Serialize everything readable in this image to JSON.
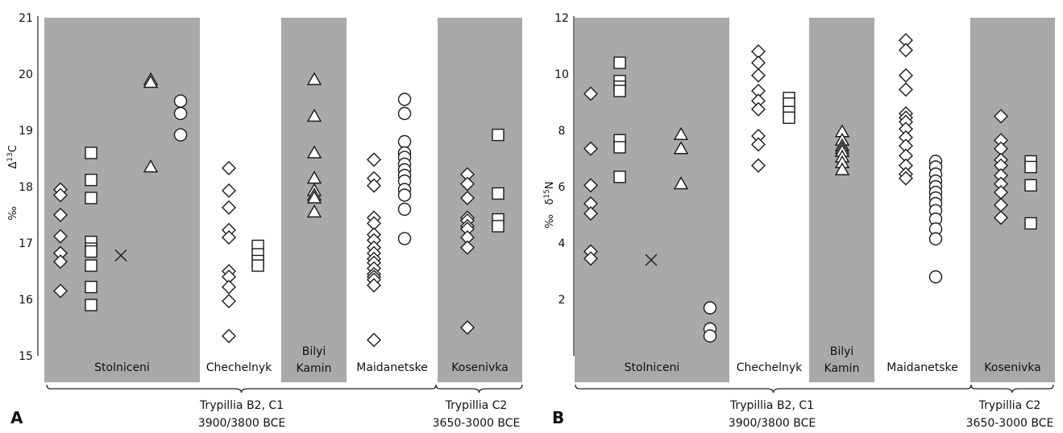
{
  "chart_data": [
    {
      "panel": "A",
      "type": "scatter",
      "ylabel": "Δ13C ‰",
      "ylim": [
        15,
        21
      ],
      "yticks": [
        15,
        16,
        17,
        18,
        19,
        20,
        21
      ],
      "groups": [
        {
          "name": "Stolniceni",
          "shaded": true
        },
        {
          "name": "Chechelnyk",
          "shaded": false
        },
        {
          "name": "Bilyi Kamin",
          "shaded": true
        },
        {
          "name": "Maidanetske",
          "shaded": false
        },
        {
          "name": "Kosenivka",
          "shaded": true
        }
      ],
      "periods": [
        {
          "label": "Trypillia B2, C1",
          "dates": "3900/3800 BCE"
        },
        {
          "label": "Trypillia C2",
          "dates": "3650-3000 BCE"
        }
      ],
      "series": [
        {
          "group": "Stolniceni",
          "marker": "diamond",
          "values": [
            17.95,
            17.85,
            17.5,
            17.12,
            16.82,
            16.67,
            16.15
          ]
        },
        {
          "group": "Stolniceni",
          "marker": "square",
          "values": [
            18.6,
            18.12,
            17.8,
            17.02,
            16.9,
            16.85,
            16.6,
            16.22,
            15.9
          ]
        },
        {
          "group": "Stolniceni",
          "marker": "cross",
          "values": [
            16.78
          ]
        },
        {
          "group": "Stolniceni",
          "marker": "triangle",
          "values": [
            19.9,
            19.85,
            18.35
          ]
        },
        {
          "group": "Stolniceni",
          "marker": "circle",
          "values": [
            19.52,
            19.3,
            18.92
          ]
        },
        {
          "group": "Chechelnyk",
          "marker": "diamond",
          "values": [
            18.33,
            17.93,
            17.63,
            17.23,
            17.1,
            16.5,
            16.4,
            16.22,
            15.97,
            15.35
          ]
        },
        {
          "group": "Chechelnyk",
          "marker": "square",
          "values": [
            16.95,
            16.8,
            16.68,
            16.6
          ]
        },
        {
          "group": "Bilyi Kamin",
          "marker": "triangle",
          "values": [
            19.9,
            19.25,
            18.6,
            18.15,
            17.93,
            17.85,
            17.8,
            17.55
          ]
        },
        {
          "group": "Maidanetske",
          "marker": "diamond",
          "values": [
            18.48,
            18.15,
            18.02,
            17.45,
            17.35,
            17.15,
            17.05,
            16.92,
            16.82,
            16.72,
            16.65,
            16.55,
            16.45,
            16.4,
            16.35,
            16.25,
            15.28
          ]
        },
        {
          "group": "Maidanetske",
          "marker": "circle",
          "values": [
            19.55,
            19.3,
            18.8,
            18.6,
            18.52,
            18.4,
            18.3,
            18.2,
            18.1,
            17.95,
            17.85,
            17.6,
            17.08
          ]
        },
        {
          "group": "Kosenivka",
          "marker": "diamond",
          "values": [
            18.22,
            18.05,
            17.8,
            17.45,
            17.4,
            17.3,
            17.25,
            17.1,
            16.92,
            15.5
          ]
        },
        {
          "group": "Kosenivka",
          "marker": "square",
          "values": [
            18.92,
            17.88,
            17.42,
            17.3
          ]
        }
      ]
    },
    {
      "panel": "B",
      "type": "scatter",
      "ylabel": "δ15N ‰",
      "ylim": [
        0,
        12
      ],
      "yticks": [
        2,
        4,
        6,
        8,
        10,
        12
      ],
      "groups": [
        {
          "name": "Stolniceni",
          "shaded": true
        },
        {
          "name": "Chechelnyk",
          "shaded": false
        },
        {
          "name": "Bilyi Kamin",
          "shaded": true
        },
        {
          "name": "Maidanetske",
          "shaded": false
        },
        {
          "name": "Kosenivka",
          "shaded": true
        }
      ],
      "periods": [
        {
          "label": "Trypillia B2, C1",
          "dates": "3900/3800 BCE"
        },
        {
          "label": "Trypillia C2",
          "dates": "3650-3000 BCE"
        }
      ],
      "series": [
        {
          "group": "Stolniceni",
          "marker": "diamond",
          "values": [
            9.3,
            7.35,
            6.05,
            5.4,
            5.05,
            3.7,
            3.45
          ]
        },
        {
          "group": "Stolniceni",
          "marker": "square",
          "values": [
            10.4,
            9.75,
            9.55,
            9.4,
            7.65,
            7.4,
            6.35
          ]
        },
        {
          "group": "Stolniceni",
          "marker": "cross",
          "values": [
            3.4
          ]
        },
        {
          "group": "Stolniceni",
          "marker": "triangle",
          "values": [
            7.85,
            7.35,
            6.1
          ]
        },
        {
          "group": "Stolniceni",
          "marker": "circle",
          "values": [
            1.7,
            0.95,
            0.7
          ]
        },
        {
          "group": "Chechelnyk",
          "marker": "diamond",
          "values": [
            10.8,
            10.4,
            9.95,
            9.4,
            9.05,
            8.75,
            7.8,
            7.5,
            6.75
          ]
        },
        {
          "group": "Chechelnyk",
          "marker": "square",
          "values": [
            9.15,
            8.95,
            8.65,
            8.45
          ]
        },
        {
          "group": "Bilyi Kamin",
          "marker": "triangle",
          "values": [
            7.95,
            7.65,
            7.45,
            7.35,
            7.25,
            7.05,
            6.85,
            6.6
          ]
        },
        {
          "group": "Maidanetske",
          "marker": "diamond",
          "values": [
            11.2,
            10.85,
            9.95,
            9.45,
            8.6,
            8.45,
            8.3,
            8.05,
            7.75,
            7.45,
            7.1,
            6.75,
            6.45,
            6.3
          ]
        },
        {
          "group": "Maidanetske",
          "marker": "circle",
          "values": [
            6.9,
            6.7,
            6.45,
            6.2,
            6.0,
            5.8,
            5.6,
            5.4,
            5.15,
            4.85,
            4.5,
            4.15,
            2.8
          ]
        },
        {
          "group": "Kosenivka",
          "marker": "diamond",
          "values": [
            8.5,
            7.65,
            7.35,
            6.95,
            6.75,
            6.4,
            6.1,
            5.8,
            5.35,
            4.9
          ]
        },
        {
          "group": "Kosenivka",
          "marker": "square",
          "values": [
            6.9,
            6.7,
            6.05,
            4.7
          ]
        }
      ]
    }
  ]
}
